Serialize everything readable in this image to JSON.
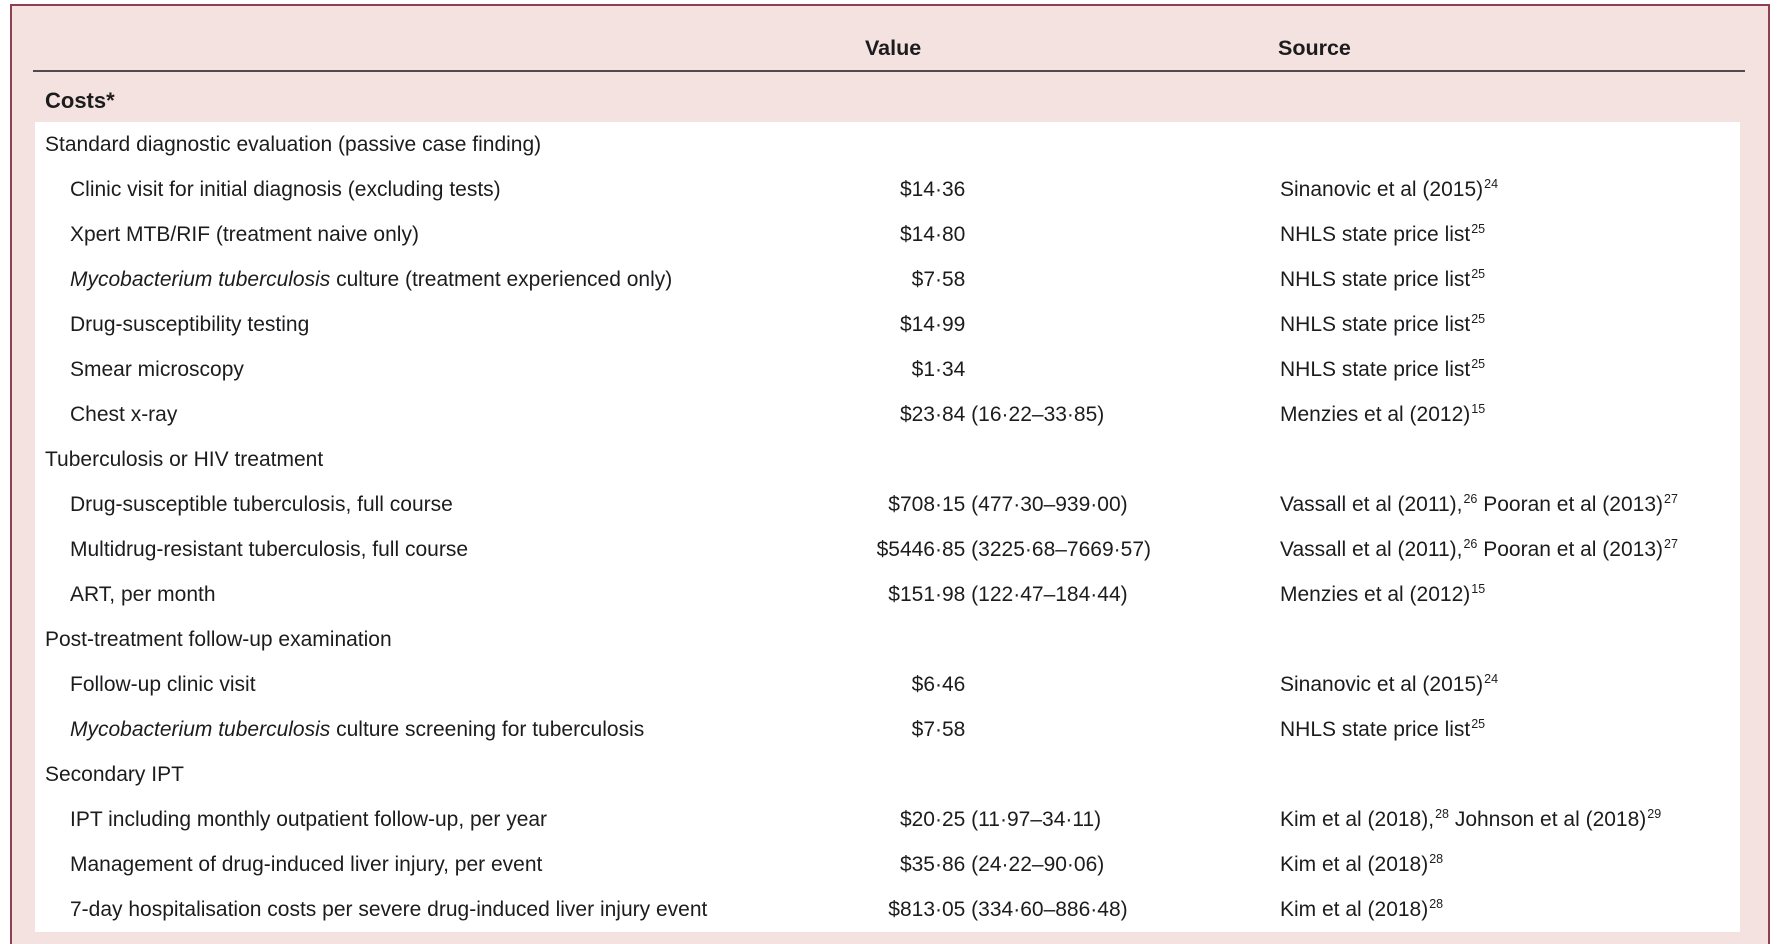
{
  "colors": {
    "card_background": "#f3e2df",
    "card_border": "#8e4050",
    "header_rule": "#4c4c4c",
    "body_background": "#ffffff",
    "text": "#1c1c1e"
  },
  "table": {
    "columns": {
      "value": "Value",
      "source": "Source"
    },
    "section_header": "Costs*",
    "rows": [
      {
        "type": "group",
        "label": [
          {
            "text": "Standard diagnostic evaluation (passive case finding)"
          }
        ]
      },
      {
        "type": "item",
        "label": [
          {
            "text": "Clinic visit for initial diagnosis (excluding tests)"
          }
        ],
        "value": "$14·36",
        "source": [
          {
            "text": "Sinanovic et al (2015)",
            "sup": "24"
          }
        ]
      },
      {
        "type": "item",
        "label": [
          {
            "text": "Xpert MTB/RIF (treatment naive only)"
          }
        ],
        "value": "$14·80",
        "source": [
          {
            "text": "NHLS state price list",
            "sup": "25"
          }
        ]
      },
      {
        "type": "item",
        "label": [
          {
            "text": "Mycobacterium tuberculosis",
            "italic": true
          },
          {
            "text": " culture (treatment experienced only)"
          }
        ],
        "value": "$7·58",
        "source": [
          {
            "text": "NHLS state price list",
            "sup": "25"
          }
        ]
      },
      {
        "type": "item",
        "label": [
          {
            "text": "Drug-susceptibility testing"
          }
        ],
        "value": "$14·99",
        "source": [
          {
            "text": "NHLS state price list",
            "sup": "25"
          }
        ]
      },
      {
        "type": "item",
        "label": [
          {
            "text": "Smear microscopy"
          }
        ],
        "value": "$1·34",
        "source": [
          {
            "text": "NHLS state price list",
            "sup": "25"
          }
        ]
      },
      {
        "type": "item",
        "label": [
          {
            "text": "Chest x-ray"
          }
        ],
        "value": "$23·84 (16·22–33·85)",
        "source": [
          {
            "text": "Menzies et al (2012)",
            "sup": "15"
          }
        ]
      },
      {
        "type": "group",
        "label": [
          {
            "text": "Tuberculosis or HIV treatment"
          }
        ]
      },
      {
        "type": "item",
        "label": [
          {
            "text": "Drug-susceptible tuberculosis, full course"
          }
        ],
        "value": "$708·15 (477·30–939·00)",
        "source": [
          {
            "text": "Vassall et al (2011),",
            "sup": "26"
          },
          {
            "text": " Pooran et al (2013)",
            "sup": "27"
          }
        ]
      },
      {
        "type": "item",
        "label": [
          {
            "text": "Multidrug-resistant tuberculosis, full course"
          }
        ],
        "value": "$5446·85 (3225·68–7669·57)",
        "source": [
          {
            "text": "Vassall et al (2011),",
            "sup": "26"
          },
          {
            "text": " Pooran et al (2013)",
            "sup": "27"
          }
        ]
      },
      {
        "type": "item",
        "label": [
          {
            "text": "ART, per month"
          }
        ],
        "value": "$151·98 (122·47–184·44)",
        "source": [
          {
            "text": "Menzies et al (2012)",
            "sup": "15"
          }
        ]
      },
      {
        "type": "group",
        "label": [
          {
            "text": "Post-treatment follow-up examination"
          }
        ]
      },
      {
        "type": "item",
        "label": [
          {
            "text": "Follow-up clinic visit"
          }
        ],
        "value": "$6·46",
        "source": [
          {
            "text": "Sinanovic et al (2015)",
            "sup": "24"
          }
        ]
      },
      {
        "type": "item",
        "label": [
          {
            "text": "Mycobacterium tuberculosis",
            "italic": true
          },
          {
            "text": " culture screening for tuberculosis"
          }
        ],
        "value": "$7·58",
        "source": [
          {
            "text": "NHLS state price list",
            "sup": "25"
          }
        ]
      },
      {
        "type": "group",
        "label": [
          {
            "text": "Secondary IPT"
          }
        ]
      },
      {
        "type": "item",
        "label": [
          {
            "text": "IPT including monthly outpatient follow-up, per year"
          }
        ],
        "value": "$20·25 (11·97–34·11)",
        "source": [
          {
            "text": "Kim et al (2018),",
            "sup": "28"
          },
          {
            "text": " Johnson et al (2018)",
            "sup": "29"
          }
        ]
      },
      {
        "type": "item",
        "label": [
          {
            "text": "Management of drug-induced liver injury, per event"
          }
        ],
        "value": "$35·86 (24·22–90·06)",
        "source": [
          {
            "text": "Kim et al (2018)",
            "sup": "28"
          }
        ]
      },
      {
        "type": "item",
        "label": [
          {
            "text": "7-day hospitalisation costs per severe drug-induced liver injury event"
          }
        ],
        "value": "$813·05 (334·60–886·48)",
        "source": [
          {
            "text": "Kim et al (2018)",
            "sup": "28"
          }
        ]
      }
    ]
  }
}
